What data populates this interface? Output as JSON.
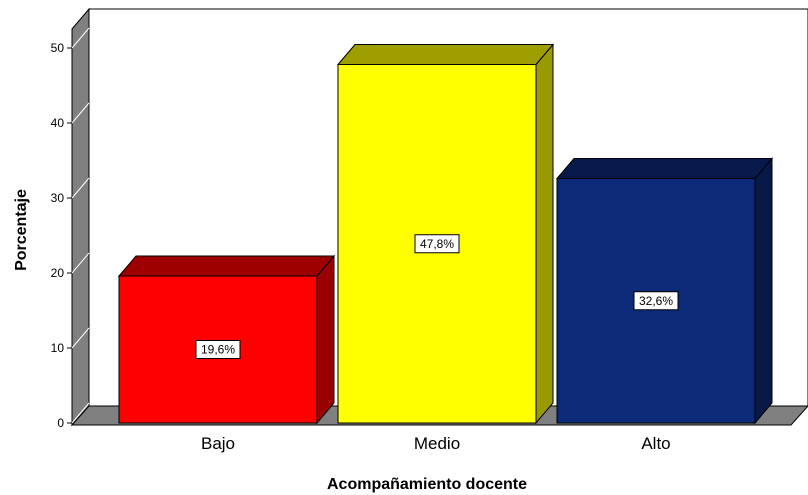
{
  "chart_data": {
    "type": "bar",
    "categories": [
      "Bajo",
      "Medio",
      "Alto"
    ],
    "values": [
      19.6,
      47.8,
      32.6
    ],
    "data_labels": [
      "19,6%",
      "47,8%",
      "32,6%"
    ],
    "colors": [
      "#ff0000",
      "#ffff00",
      "#0d2a78"
    ],
    "xlabel": "Acompañamiento docente",
    "ylabel": "Porcentaje",
    "ylim": [
      0,
      50
    ],
    "yticks": [
      "0",
      "10",
      "20",
      "30",
      "40",
      "50"
    ],
    "grid": false,
    "style": "3d-bars"
  }
}
